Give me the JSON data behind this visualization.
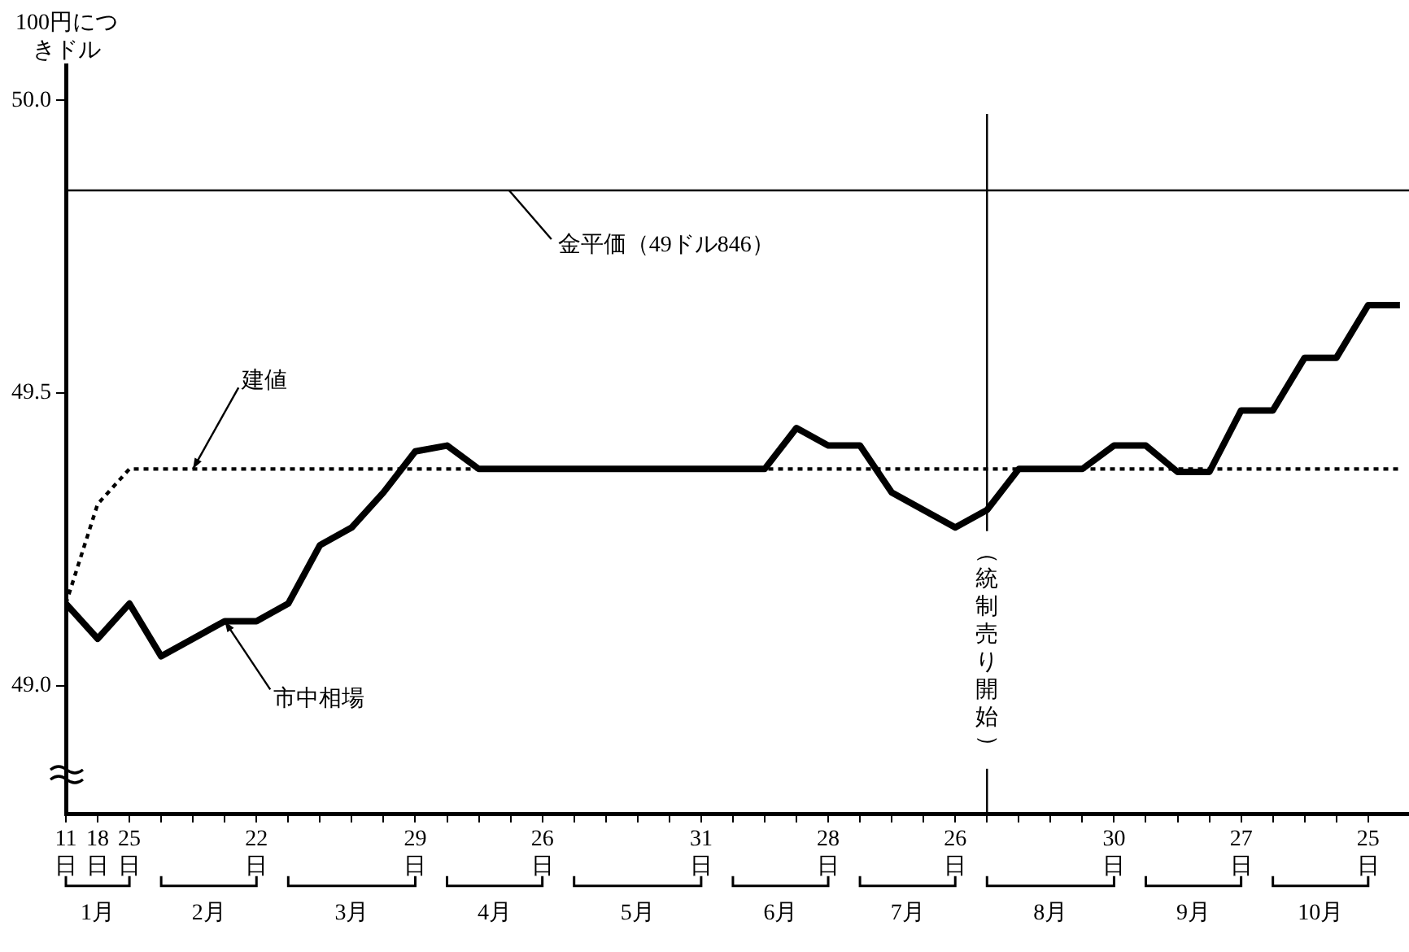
{
  "chart_data": {
    "type": "line",
    "ylabel": "100円につきドル",
    "marker": "none",
    "legend": false,
    "grid": false,
    "xlim": [
      "--01-11",
      "--11-03"
    ],
    "ylim": [
      48.78,
      50.06
    ],
    "yticks": [
      {
        "value": 49.0,
        "label": "49.0"
      },
      {
        "value": 49.5,
        "label": "49.5"
      },
      {
        "value": 50.0,
        "label": "50.0"
      }
    ],
    "xticks": [
      {
        "value": "--01-11",
        "label": "11日"
      },
      {
        "value": "--01-18",
        "label": "18日"
      },
      {
        "value": "--01-25",
        "label": "25日"
      },
      {
        "value": "--02-01",
        "label": null
      },
      {
        "value": "--02-08",
        "label": null
      },
      {
        "value": "--02-15",
        "label": null
      },
      {
        "value": "--02-22",
        "label": "22日"
      },
      {
        "value": "--03-01",
        "label": null
      },
      {
        "value": "--03-08",
        "label": null
      },
      {
        "value": "--03-15",
        "label": null
      },
      {
        "value": "--03-22",
        "label": null
      },
      {
        "value": "--03-29",
        "label": "29日"
      },
      {
        "value": "--04-05",
        "label": null
      },
      {
        "value": "--04-12",
        "label": null
      },
      {
        "value": "--04-19",
        "label": null
      },
      {
        "value": "--04-26",
        "label": "26日"
      },
      {
        "value": "--05-03",
        "label": null
      },
      {
        "value": "--05-10",
        "label": null
      },
      {
        "value": "--05-17",
        "label": null
      },
      {
        "value": "--05-24",
        "label": null
      },
      {
        "value": "--05-31",
        "label": "31日"
      },
      {
        "value": "--06-07",
        "label": null
      },
      {
        "value": "--06-14",
        "label": null
      },
      {
        "value": "--06-21",
        "label": null
      },
      {
        "value": "--06-28",
        "label": "28日"
      },
      {
        "value": "--07-05",
        "label": null
      },
      {
        "value": "--07-12",
        "label": null
      },
      {
        "value": "--07-19",
        "label": null
      },
      {
        "value": "--07-26",
        "label": "26日"
      },
      {
        "value": "--08-02",
        "label": null
      },
      {
        "value": "--08-09",
        "label": null
      },
      {
        "value": "--08-16",
        "label": null
      },
      {
        "value": "--08-23",
        "label": null
      },
      {
        "value": "--08-30",
        "label": "30日"
      },
      {
        "value": "--09-06",
        "label": null
      },
      {
        "value": "--09-13",
        "label": null
      },
      {
        "value": "--09-20",
        "label": null
      },
      {
        "value": "--09-27",
        "label": "27日"
      },
      {
        "value": "--10-04",
        "label": null
      },
      {
        "value": "--10-11",
        "label": null
      },
      {
        "value": "--10-18",
        "label": null
      },
      {
        "value": "--10-25",
        "label": "25日"
      }
    ],
    "series": [
      {
        "color": "#000000",
        "line_style": "solid",
        "x": [
          "--01-11",
          "--01-18",
          "--01-25",
          "--02-01",
          "--02-08",
          "--02-15",
          "--02-22",
          "--03-01",
          "--03-08",
          "--03-15",
          "--03-22",
          "--03-29",
          "--04-05",
          "--04-12",
          "--04-19",
          "--04-26",
          "--05-03",
          "--05-10",
          "--05-17",
          "--05-24",
          "--05-31",
          "--06-07",
          "--06-14",
          "--06-21",
          "--06-28",
          "--07-05",
          "--07-12",
          "--07-19",
          "--07-26",
          "--08-02",
          "--08-09",
          "--08-16",
          "--08-23",
          "--08-30",
          "--09-06",
          "--09-13",
          "--09-20",
          "--09-27",
          "--10-04",
          "--10-11",
          "--10-18",
          "--10-25",
          "--11-01"
        ],
        "values": [
          49.14,
          49.08,
          49.14,
          49.05,
          49.08,
          49.11,
          49.11,
          49.14,
          49.24,
          49.27,
          49.33,
          49.4,
          49.41,
          49.37,
          49.37,
          49.37,
          49.37,
          49.37,
          49.37,
          49.37,
          49.37,
          49.37,
          49.37,
          49.44,
          49.41,
          49.41,
          49.33,
          49.3,
          49.27,
          49.3,
          49.37,
          49.37,
          49.37,
          49.41,
          49.41,
          49.365,
          49.365,
          49.47,
          49.47,
          49.56,
          49.56,
          49.65,
          49.65
        ]
      },
      {
        "color": "#000000",
        "line_style": "dotted",
        "x": [
          "--01-11",
          "--01-18",
          "--01-25",
          "--11-01"
        ],
        "values": [
          49.14,
          49.31,
          49.37,
          49.37
        ]
      }
    ],
    "ref_lines": [
      {
        "axis": "y",
        "value": 49.846,
        "label": "金平価（49ドル846）"
      },
      {
        "axis": "x",
        "value": "--08-02",
        "label": "（統制売り開始）"
      }
    ],
    "annotations": [
      {
        "text": "建値",
        "x": "--02-08",
        "y": 49.37
      },
      {
        "text": "市中相場",
        "x": "--02-15",
        "y": 49.11
      },
      "1月",
      "2月",
      "3月",
      "4月",
      "5月",
      "6月",
      "7月",
      "8月",
      "9月",
      "10月"
    ]
  }
}
